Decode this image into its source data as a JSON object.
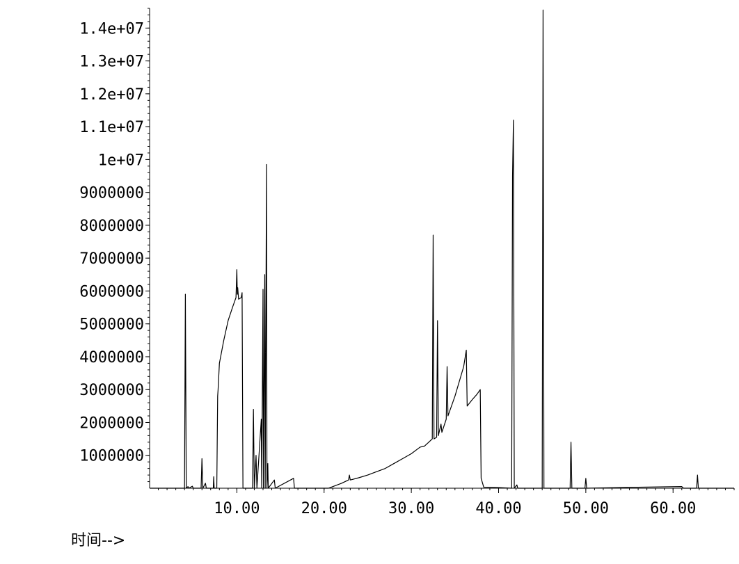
{
  "chart_data": {
    "type": "line",
    "xlabel": "时间-->",
    "ylabel": "",
    "title": "",
    "xlim": [
      0,
      67
    ],
    "ylim": [
      0,
      14600000
    ],
    "x_ticks": [
      10,
      20,
      30,
      40,
      50,
      60
    ],
    "x_tick_labels": [
      "10.00",
      "20.00",
      "30.00",
      "40.00",
      "50.00",
      "60.00"
    ],
    "y_ticks": [
      1000000,
      2000000,
      3000000,
      4000000,
      5000000,
      6000000,
      7000000,
      8000000,
      9000000,
      10000000,
      11000000,
      12000000,
      13000000,
      14000000
    ],
    "y_tick_labels": [
      "1000000",
      "2000000",
      "3000000",
      "4000000",
      "5000000",
      "6000000",
      "7000000",
      "8000000",
      "9000000",
      "1e+07",
      "1.1e+07",
      "1.2e+07",
      "1.3e+07",
      "1.4e+07"
    ],
    "grid": false,
    "line_color": "#000000",
    "series": [
      {
        "values": [
          [
            0.0,
            0
          ],
          [
            4.0,
            0
          ],
          [
            4.1,
            5900000
          ],
          [
            4.2,
            0
          ],
          [
            4.4,
            50000
          ],
          [
            4.5,
            0
          ],
          [
            4.9,
            60000
          ],
          [
            5.0,
            0
          ],
          [
            5.9,
            0
          ],
          [
            6.0,
            900000
          ],
          [
            6.1,
            0
          ],
          [
            6.4,
            150000
          ],
          [
            6.5,
            0
          ],
          [
            7.3,
            0
          ],
          [
            7.35,
            350000
          ],
          [
            7.4,
            0
          ],
          [
            7.7,
            0
          ],
          [
            7.8,
            2800000
          ],
          [
            7.85,
            3000000
          ],
          [
            8.0,
            3800000
          ],
          [
            8.5,
            4500000
          ],
          [
            9.0,
            5100000
          ],
          [
            9.5,
            5500000
          ],
          [
            9.9,
            5800000
          ],
          [
            10.0,
            6650000
          ],
          [
            10.05,
            5900000
          ],
          [
            10.1,
            6100000
          ],
          [
            10.2,
            5750000
          ],
          [
            10.5,
            5800000
          ],
          [
            10.6,
            5950000
          ],
          [
            10.65,
            3000000
          ],
          [
            10.7,
            0
          ],
          [
            11.8,
            0
          ],
          [
            11.9,
            2400000
          ],
          [
            12.0,
            0
          ],
          [
            12.2,
            1000000
          ],
          [
            12.3,
            0
          ],
          [
            12.8,
            2100000
          ],
          [
            12.85,
            0
          ],
          [
            13.0,
            6050000
          ],
          [
            13.05,
            0
          ],
          [
            13.2,
            6500000
          ],
          [
            13.25,
            0
          ],
          [
            13.4,
            9850000
          ],
          [
            13.45,
            0
          ],
          [
            13.55,
            750000
          ],
          [
            13.6,
            0
          ],
          [
            14.3,
            250000
          ],
          [
            14.4,
            0
          ],
          [
            16.5,
            300000
          ],
          [
            16.6,
            0
          ],
          [
            20.5,
            0
          ],
          [
            21.0,
            50000
          ],
          [
            22.0,
            150000
          ],
          [
            22.8,
            250000
          ],
          [
            22.9,
            400000
          ],
          [
            23.0,
            250000
          ],
          [
            24.0,
            320000
          ],
          [
            25.0,
            400000
          ],
          [
            26.0,
            500000
          ],
          [
            27.0,
            600000
          ],
          [
            28.0,
            750000
          ],
          [
            29.0,
            900000
          ],
          [
            30.0,
            1050000
          ],
          [
            31.0,
            1250000
          ],
          [
            31.5,
            1280000
          ],
          [
            32.0,
            1400000
          ],
          [
            32.4,
            1500000
          ],
          [
            32.5,
            7700000
          ],
          [
            32.6,
            1500000
          ],
          [
            32.9,
            1550000
          ],
          [
            33.0,
            5100000
          ],
          [
            33.1,
            1600000
          ],
          [
            33.4,
            1950000
          ],
          [
            33.5,
            1700000
          ],
          [
            34.0,
            2100000
          ],
          [
            34.1,
            3700000
          ],
          [
            34.2,
            2200000
          ],
          [
            35.0,
            2800000
          ],
          [
            36.0,
            3700000
          ],
          [
            36.3,
            4200000
          ],
          [
            36.4,
            2500000
          ],
          [
            37.0,
            2700000
          ],
          [
            37.5,
            2850000
          ],
          [
            37.9,
            3000000
          ],
          [
            38.0,
            300000
          ],
          [
            38.3,
            30000
          ],
          [
            40.0,
            20000
          ],
          [
            41.5,
            0
          ],
          [
            41.6,
            9500000
          ],
          [
            41.7,
            11200000
          ],
          [
            41.8,
            0
          ],
          [
            42.1,
            100000
          ],
          [
            42.2,
            0
          ],
          [
            45.0,
            0
          ],
          [
            45.1,
            14550000
          ],
          [
            45.2,
            0
          ],
          [
            48.2,
            0
          ],
          [
            48.3,
            1400000
          ],
          [
            48.4,
            0
          ],
          [
            49.9,
            0
          ],
          [
            50.0,
            300000
          ],
          [
            50.1,
            0
          ],
          [
            56.0,
            30000
          ],
          [
            61.0,
            50000
          ],
          [
            61.2,
            0
          ],
          [
            62.7,
            0
          ],
          [
            62.8,
            400000
          ],
          [
            62.9,
            0
          ],
          [
            67.0,
            0
          ]
        ]
      }
    ]
  }
}
